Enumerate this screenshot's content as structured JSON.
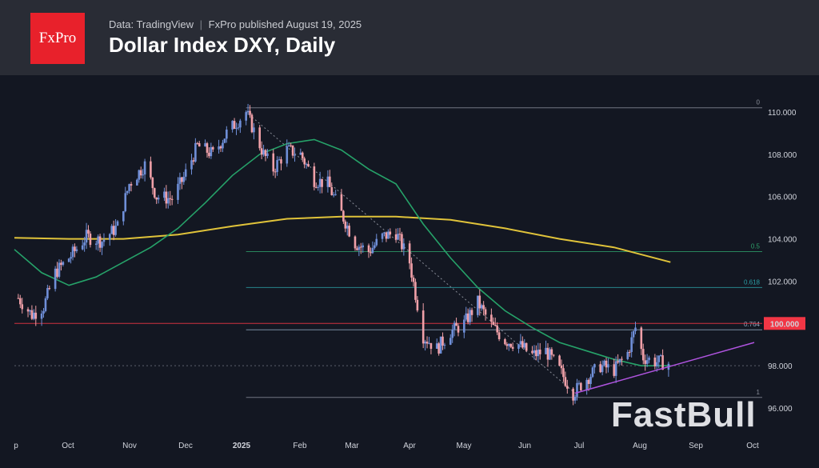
{
  "header": {
    "logo_text": "FxPro",
    "source": "Data: TradingView",
    "separator": "|",
    "publisher": "FxPro published August 19, 2025",
    "title": "Dollar Index DXY, Daily"
  },
  "watermark": "FastBull",
  "colors": {
    "background": "#131722",
    "header": "#292c35",
    "bull_candle": "#6f8fd8",
    "bear_candle": "#f0a0a8",
    "ma_short": "#26a269",
    "ma_long": "#e0c33a",
    "trendline": "#b054e0",
    "price_badge": "#f23645",
    "horizontal_line": "#f23645"
  },
  "chart_data": {
    "type": "candlestick",
    "title": "Dollar Index DXY, Daily",
    "x_ticks": [
      "p",
      "Oct",
      "Nov",
      "Dec",
      "2025",
      "Feb",
      "Mar",
      "Apr",
      "May",
      "Jun",
      "Jul",
      "Aug",
      "Sep",
      "Oct"
    ],
    "y_ticks": [
      "110.000",
      "108.000",
      "106.000",
      "104.000",
      "102.000",
      "100.000",
      "98.000",
      "96.000"
    ],
    "y_range": [
      95.0,
      111.0
    ],
    "x_range": [
      "2024-09-16",
      "2025-10-01"
    ],
    "last_price_label": "100.000",
    "close_path": [
      [
        "2024-09-18",
        101.2
      ],
      [
        "2024-09-25",
        100.4
      ],
      [
        "2024-10-01",
        100.8
      ],
      [
        "2024-10-07",
        102.4
      ],
      [
        "2024-10-15",
        103.2
      ],
      [
        "2024-10-23",
        104.1
      ],
      [
        "2024-10-31",
        103.9
      ],
      [
        "2024-11-08",
        104.6
      ],
      [
        "2024-11-14",
        106.6
      ],
      [
        "2024-11-22",
        107.5
      ],
      [
        "2024-11-28",
        106.0
      ],
      [
        "2024-12-06",
        105.9
      ],
      [
        "2024-12-12",
        106.9
      ],
      [
        "2024-12-19",
        108.4
      ],
      [
        "2024-12-27",
        108.0
      ],
      [
        "2025-01-03",
        109.0
      ],
      [
        "2025-01-10",
        109.7
      ],
      [
        "2025-01-13",
        110.0
      ],
      [
        "2025-01-22",
        108.0
      ],
      [
        "2025-01-27",
        107.3
      ],
      [
        "2025-02-03",
        108.2
      ],
      [
        "2025-02-10",
        108.0
      ],
      [
        "2025-02-17",
        106.8
      ],
      [
        "2025-02-24",
        106.6
      ],
      [
        "2025-03-03",
        105.2
      ],
      [
        "2025-03-10",
        103.8
      ],
      [
        "2025-03-17",
        103.4
      ],
      [
        "2025-03-24",
        104.1
      ],
      [
        "2025-03-31",
        104.3
      ],
      [
        "2025-04-07",
        102.9
      ],
      [
        "2025-04-14",
        99.4
      ],
      [
        "2025-04-21",
        98.8
      ],
      [
        "2025-04-28",
        99.6
      ],
      [
        "2025-05-05",
        100.0
      ],
      [
        "2025-05-12",
        101.0
      ],
      [
        "2025-05-19",
        99.9
      ],
      [
        "2025-05-26",
        99.2
      ],
      [
        "2025-06-02",
        99.0
      ],
      [
        "2025-06-09",
        98.5
      ],
      [
        "2025-06-16",
        98.7
      ],
      [
        "2025-06-23",
        97.8
      ],
      [
        "2025-06-30",
        96.7
      ],
      [
        "2025-07-07",
        97.4
      ],
      [
        "2025-07-14",
        98.0
      ],
      [
        "2025-07-21",
        97.8
      ],
      [
        "2025-07-28",
        98.6
      ],
      [
        "2025-08-01",
        99.8
      ],
      [
        "2025-08-05",
        98.4
      ],
      [
        "2025-08-11",
        98.2
      ],
      [
        "2025-08-19",
        98.1
      ]
    ],
    "ma_short_path": [
      [
        "2024-09-16",
        103.5
      ],
      [
        "2024-09-30",
        102.4
      ],
      [
        "2024-10-14",
        101.8
      ],
      [
        "2024-10-28",
        102.2
      ],
      [
        "2024-11-11",
        102.9
      ],
      [
        "2024-11-25",
        103.6
      ],
      [
        "2024-12-09",
        104.5
      ],
      [
        "2024-12-23",
        105.7
      ],
      [
        "2025-01-06",
        107.0
      ],
      [
        "2025-01-20",
        108.0
      ],
      [
        "2025-02-03",
        108.5
      ],
      [
        "2025-02-17",
        108.7
      ],
      [
        "2025-03-03",
        108.2
      ],
      [
        "2025-03-17",
        107.3
      ],
      [
        "2025-03-31",
        106.6
      ],
      [
        "2025-04-14",
        104.7
      ],
      [
        "2025-04-28",
        103.1
      ],
      [
        "2025-05-12",
        101.7
      ],
      [
        "2025-05-26",
        100.6
      ],
      [
        "2025-06-09",
        99.8
      ],
      [
        "2025-06-23",
        99.1
      ],
      [
        "2025-07-07",
        98.7
      ],
      [
        "2025-07-21",
        98.3
      ],
      [
        "2025-08-04",
        98.0
      ],
      [
        "2025-08-19",
        98.0
      ]
    ],
    "ma_long_path": [
      [
        "2024-09-16",
        104.05
      ],
      [
        "2024-10-14",
        104.0
      ],
      [
        "2024-11-11",
        104.0
      ],
      [
        "2024-12-09",
        104.2
      ],
      [
        "2025-01-06",
        104.6
      ],
      [
        "2025-02-03",
        104.95
      ],
      [
        "2025-03-03",
        105.05
      ],
      [
        "2025-03-31",
        105.05
      ],
      [
        "2025-04-28",
        104.9
      ],
      [
        "2025-05-26",
        104.5
      ],
      [
        "2025-06-23",
        104.0
      ],
      [
        "2025-07-21",
        103.6
      ],
      [
        "2025-08-19",
        102.9
      ]
    ],
    "fibonacci": {
      "start_date": "2025-01-13",
      "end_date": "2025-10-01",
      "levels": [
        {
          "label": "0",
          "value": 110.2
        },
        {
          "label": "0.5",
          "value": 103.4
        },
        {
          "label": "0.618",
          "value": 101.7
        },
        {
          "label": "0.764",
          "value": 99.7
        },
        {
          "label": "1",
          "value": 96.5
        }
      ]
    },
    "horizontal_line": 100.0,
    "extra_line": 98.0,
    "trendline": {
      "start": [
        "2025-07-01",
        96.7
      ],
      "end": [
        "2025-10-01",
        99.1
      ]
    },
    "dotted_line": {
      "start": [
        "2025-01-13",
        110.0
      ],
      "end": [
        "2025-07-01",
        96.7
      ]
    }
  }
}
